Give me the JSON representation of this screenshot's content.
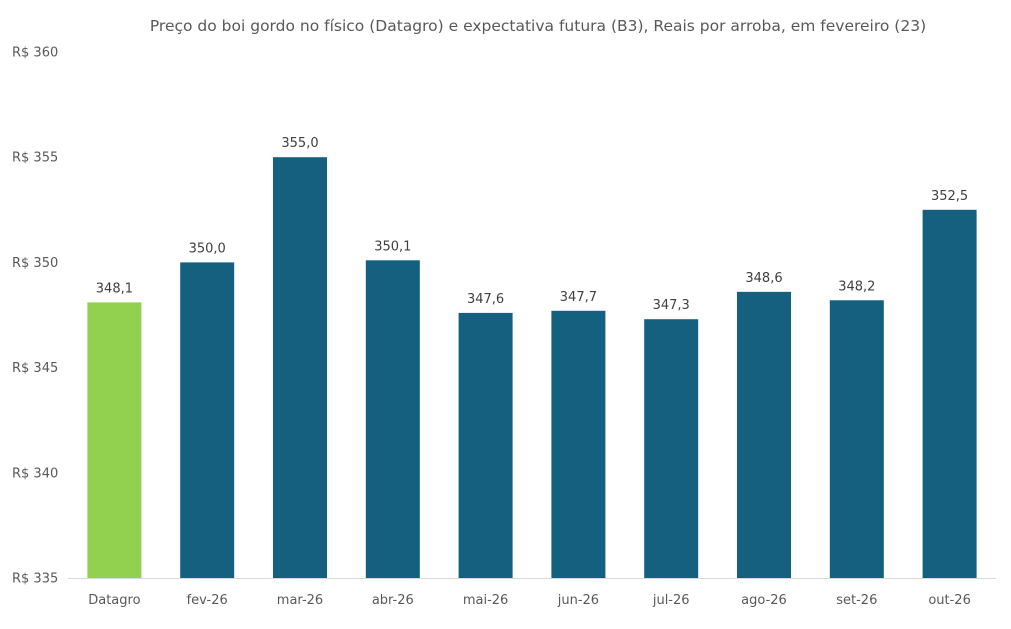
{
  "chart_data": {
    "type": "bar",
    "title": "Preço do boi gordo no físico (Datagro)  e expectativa futura (B3), Reais por arroba, em fevereiro (23)",
    "categories": [
      "Datagro",
      "fev-26",
      "mar-26",
      "abr-26",
      "mai-26",
      "jun-26",
      "jul-26",
      "ago-26",
      "set-26",
      "out-26"
    ],
    "values": [
      348.1,
      350.0,
      355.0,
      350.1,
      347.6,
      347.7,
      347.3,
      348.6,
      348.2,
      352.5
    ],
    "value_labels": [
      "348,1",
      "350,0",
      "355,0",
      "350,1",
      "347,6",
      "347,7",
      "347,3",
      "348,6",
      "348,2",
      "352,5"
    ],
    "y_ticks": [
      335,
      340,
      345,
      350,
      355,
      360
    ],
    "y_tick_labels": [
      "R$ 335",
      "R$ 340",
      "R$ 345",
      "R$ 350",
      "R$ 355",
      "R$ 360"
    ],
    "ylim": [
      335,
      360
    ],
    "grid": false,
    "xlabel": "",
    "ylabel": "",
    "colors": {
      "highlight": "#92D050",
      "bar": "#15607F",
      "axis": "#D9D9D9",
      "text": "#595959"
    }
  }
}
